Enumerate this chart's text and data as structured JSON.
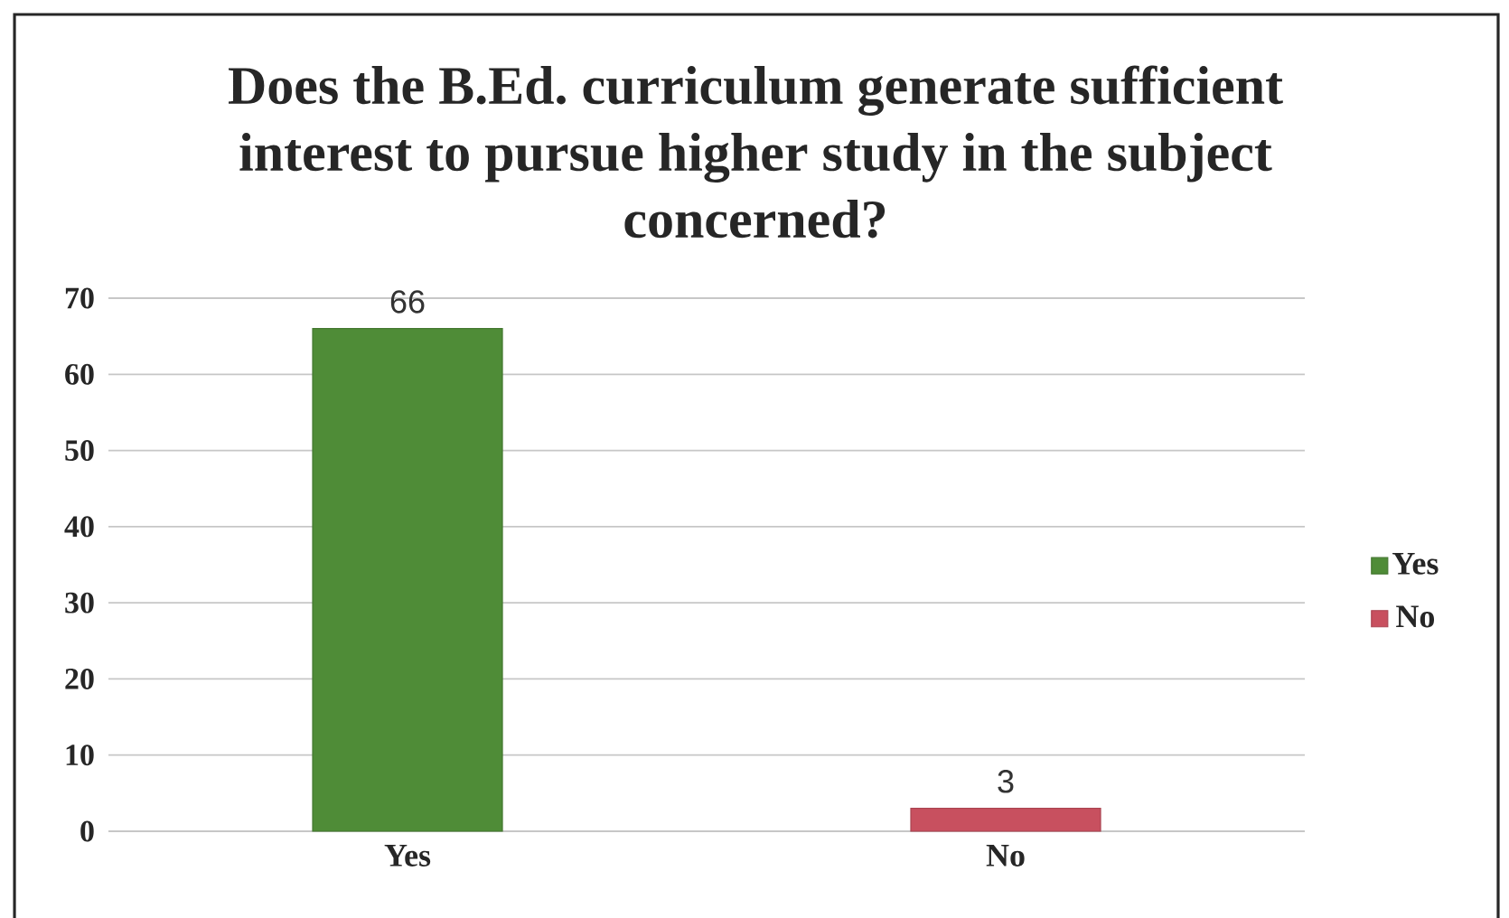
{
  "chart_data": {
    "type": "bar",
    "title": "Does the B.Ed. curriculum generate sufficient interest to pursue higher study in the subject concerned?",
    "categories": [
      "Yes",
      "No"
    ],
    "series": [
      {
        "name": "Yes",
        "color": "#4f8c37",
        "values": [
          66,
          null
        ]
      },
      {
        "name": "No",
        "color": "#c8505f",
        "values": [
          null,
          3
        ]
      }
    ],
    "ylim": [
      0,
      70
    ],
    "yticks": [
      0,
      10,
      20,
      30,
      40,
      50,
      60,
      70
    ],
    "grid": "y",
    "legend": "right",
    "data_labels": true
  }
}
